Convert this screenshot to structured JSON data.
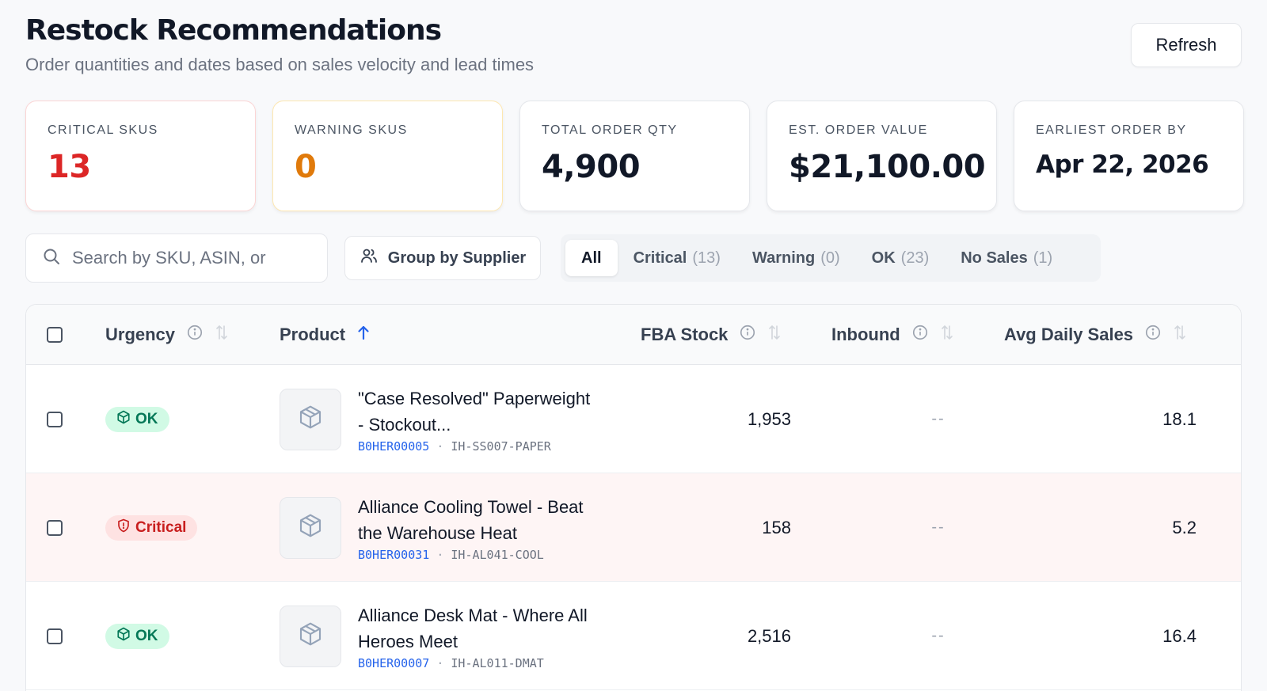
{
  "header": {
    "title": "Restock Recommendations",
    "subtitle": "Order quantities and dates based on sales velocity and lead times",
    "refresh_label": "Refresh"
  },
  "stats": [
    {
      "label": "CRITICAL SKUS",
      "value": "13"
    },
    {
      "label": "WARNING SKUS",
      "value": "0"
    },
    {
      "label": "TOTAL ORDER QTY",
      "value": "4,900"
    },
    {
      "label": "EST. ORDER VALUE",
      "value": "$21,100.00"
    },
    {
      "label": "EARLIEST ORDER BY",
      "value": "Apr 22, 2026"
    }
  ],
  "toolbar": {
    "search_placeholder": "Search by SKU, ASIN, or",
    "group_label": "Group by Supplier",
    "filters": [
      {
        "label": "All",
        "count": ""
      },
      {
        "label": "Critical",
        "count": "(13)"
      },
      {
        "label": "Warning",
        "count": "(0)"
      },
      {
        "label": "OK",
        "count": "(23)"
      },
      {
        "label": "No Sales",
        "count": "(1)"
      }
    ],
    "active_filter": "All"
  },
  "table": {
    "columns": [
      "Urgency",
      "Product",
      "FBA Stock",
      "Inbound",
      "Avg Daily Sales"
    ],
    "sort": {
      "column": "Product",
      "direction": "asc"
    },
    "rows": [
      {
        "urgency": "OK",
        "name": "\"Case Resolved\" Paperweight - Stockout...",
        "asin": "B0HER00005",
        "sku": "IH-SS007-PAPER",
        "fba_stock": "1,953",
        "inbound": "--",
        "avg_daily_sales": "18.1"
      },
      {
        "urgency": "Critical",
        "name": "Alliance Cooling Towel - Beat the Warehouse Heat",
        "asin": "B0HER00031",
        "sku": "IH-AL041-COOL",
        "fba_stock": "158",
        "inbound": "--",
        "avg_daily_sales": "5.2"
      },
      {
        "urgency": "OK",
        "name": "Alliance Desk Mat - Where All Heroes Meet",
        "asin": "B0HER00007",
        "sku": "IH-AL011-DMAT",
        "fba_stock": "2,516",
        "inbound": "--",
        "avg_daily_sales": "16.4"
      }
    ],
    "id_separator": "·"
  },
  "colors": {
    "critical": "#dc2626",
    "warning": "#e07a0b",
    "ok": "#047857",
    "link": "#2563eb"
  }
}
